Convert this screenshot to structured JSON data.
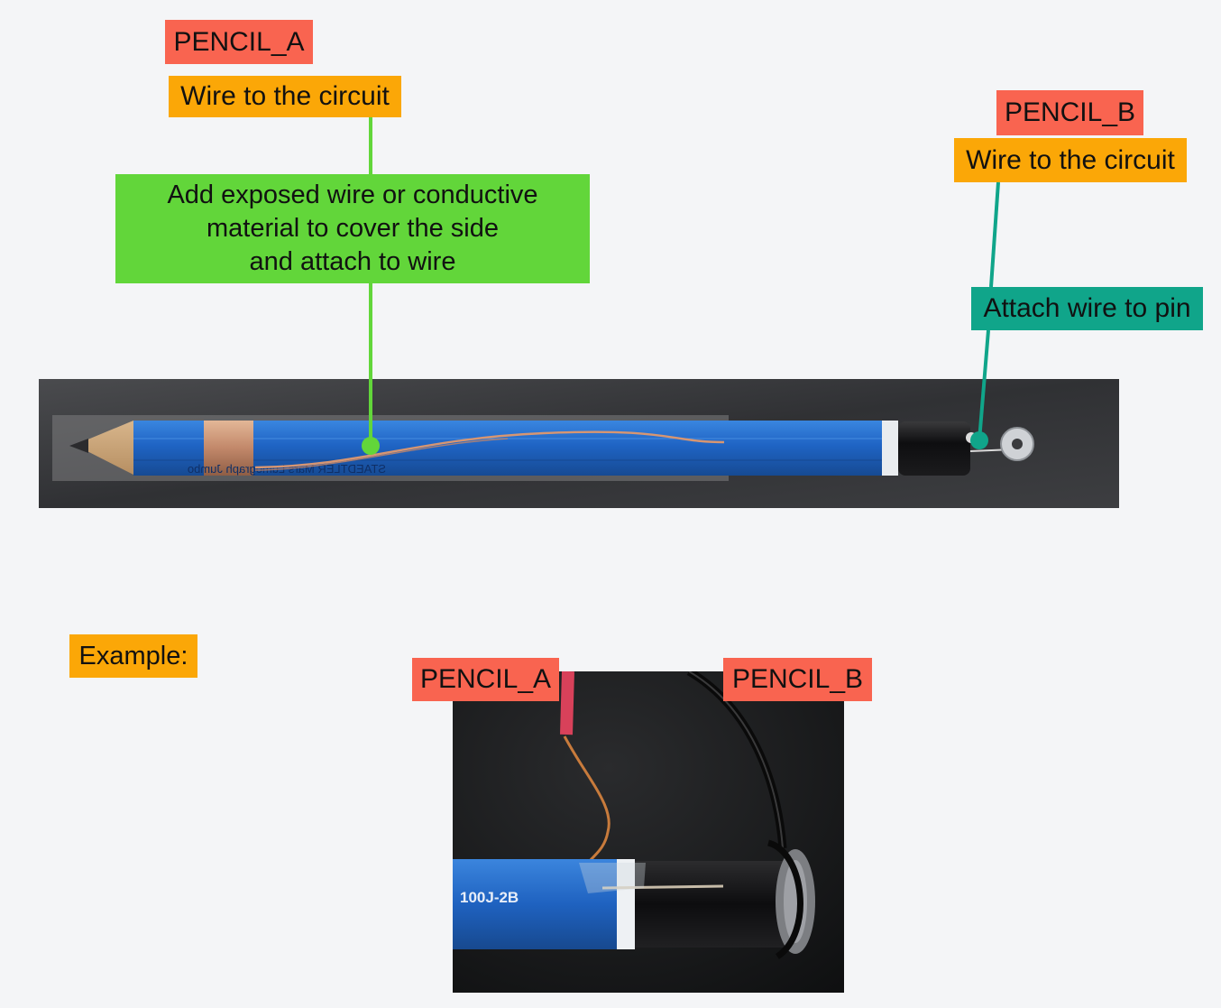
{
  "top": {
    "pencil_a": {
      "title": "PENCIL_A",
      "wire_label": "Wire to the circuit",
      "note_lines": [
        "Add exposed wire or conductive",
        "material to cover the side",
        "and attach to wire"
      ]
    },
    "pencil_b": {
      "title": "PENCIL_B",
      "wire_label": "Wire to the circuit",
      "pin_label": "Attach wire to pin"
    },
    "pencil_imprint": "STAEDTLER   Mars Lumograph Jumbo"
  },
  "example": {
    "label": "Example:",
    "pencil_a_label": "PENCIL_A",
    "pencil_b_label": "PENCIL_B",
    "pencil_imprint": "100J-2B"
  },
  "colors": {
    "pencil_name": "#f96450",
    "wire_label": "#fba707",
    "side_note": "#62d63a",
    "pin_note": "#10a58a",
    "pencil_body": "#1f64c4"
  }
}
